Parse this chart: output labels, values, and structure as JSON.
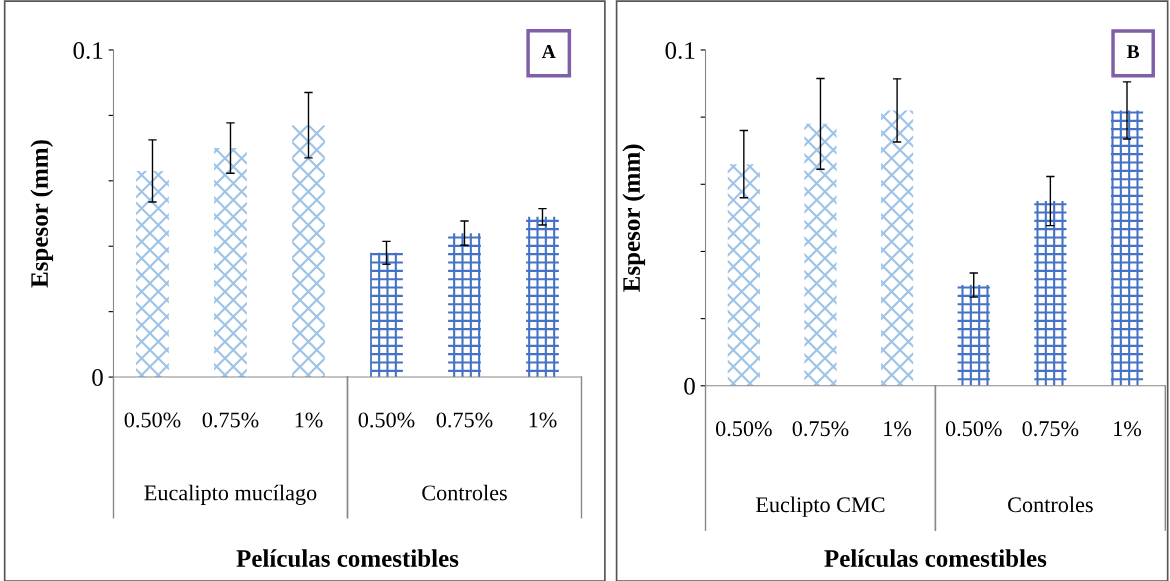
{
  "chart_data": [
    {
      "type": "bar",
      "xlabel": "Películas comestibles",
      "ylabel": "Espesor (mm)",
      "annotations": [
        "A",
        "Eucalipto mucílago",
        "Controles"
      ],
      "categories": [
        "0.50%",
        "0.75%",
        "1%",
        "0.50%",
        "0.75%",
        "1%"
      ],
      "series": [
        {
          "color": "#9dc3e6",
          "values": [
            0.063,
            0.07,
            0.077,
            null,
            null,
            null
          ],
          "errors": [
            0.0095,
            0.0077,
            0.01,
            null,
            null,
            null
          ]
        },
        {
          "color": "#4472c4",
          "values": [
            null,
            null,
            null,
            0.038,
            0.044,
            0.049
          ],
          "errors": [
            null,
            null,
            null,
            0.0035,
            0.0037,
            0.0025
          ]
        }
      ],
      "ylim": [
        0,
        0.1
      ],
      "yticks": [
        0,
        {
          "value": 0.02,
          "label": null
        },
        {
          "value": 0.04,
          "label": null
        },
        {
          "value": 0.06,
          "label": null
        },
        {
          "value": 0.08,
          "label": null
        },
        0.1
      ],
      "grid": false,
      "legend": false
    },
    {
      "type": "bar",
      "xlabel": "Películas comestibles",
      "ylabel": "Espesor (mm)",
      "annotations": [
        "B",
        "Euclipto CMC",
        "Controles"
      ],
      "categories": [
        "0.50%",
        "0.75%",
        "1%",
        "0.50%",
        "0.75%",
        "1%"
      ],
      "series": [
        {
          "color": "#9dc3e6",
          "values": [
            0.066,
            0.078,
            0.082,
            null,
            null,
            null
          ],
          "errors": [
            0.01,
            0.0135,
            0.0094,
            null,
            null,
            null
          ]
        },
        {
          "color": "#4472c4",
          "values": [
            null,
            null,
            null,
            0.03,
            0.055,
            0.082
          ],
          "errors": [
            null,
            null,
            null,
            0.0036,
            0.0073,
            0.0085
          ]
        }
      ],
      "ylim": [
        0,
        0.1
      ],
      "yticks": [
        0,
        {
          "value": 0.02,
          "label": null
        },
        {
          "value": 0.04,
          "label": null
        },
        {
          "value": 0.06,
          "label": null
        },
        {
          "value": 0.08,
          "label": null
        },
        0.1
      ],
      "grid": false,
      "legend": false
    }
  ]
}
